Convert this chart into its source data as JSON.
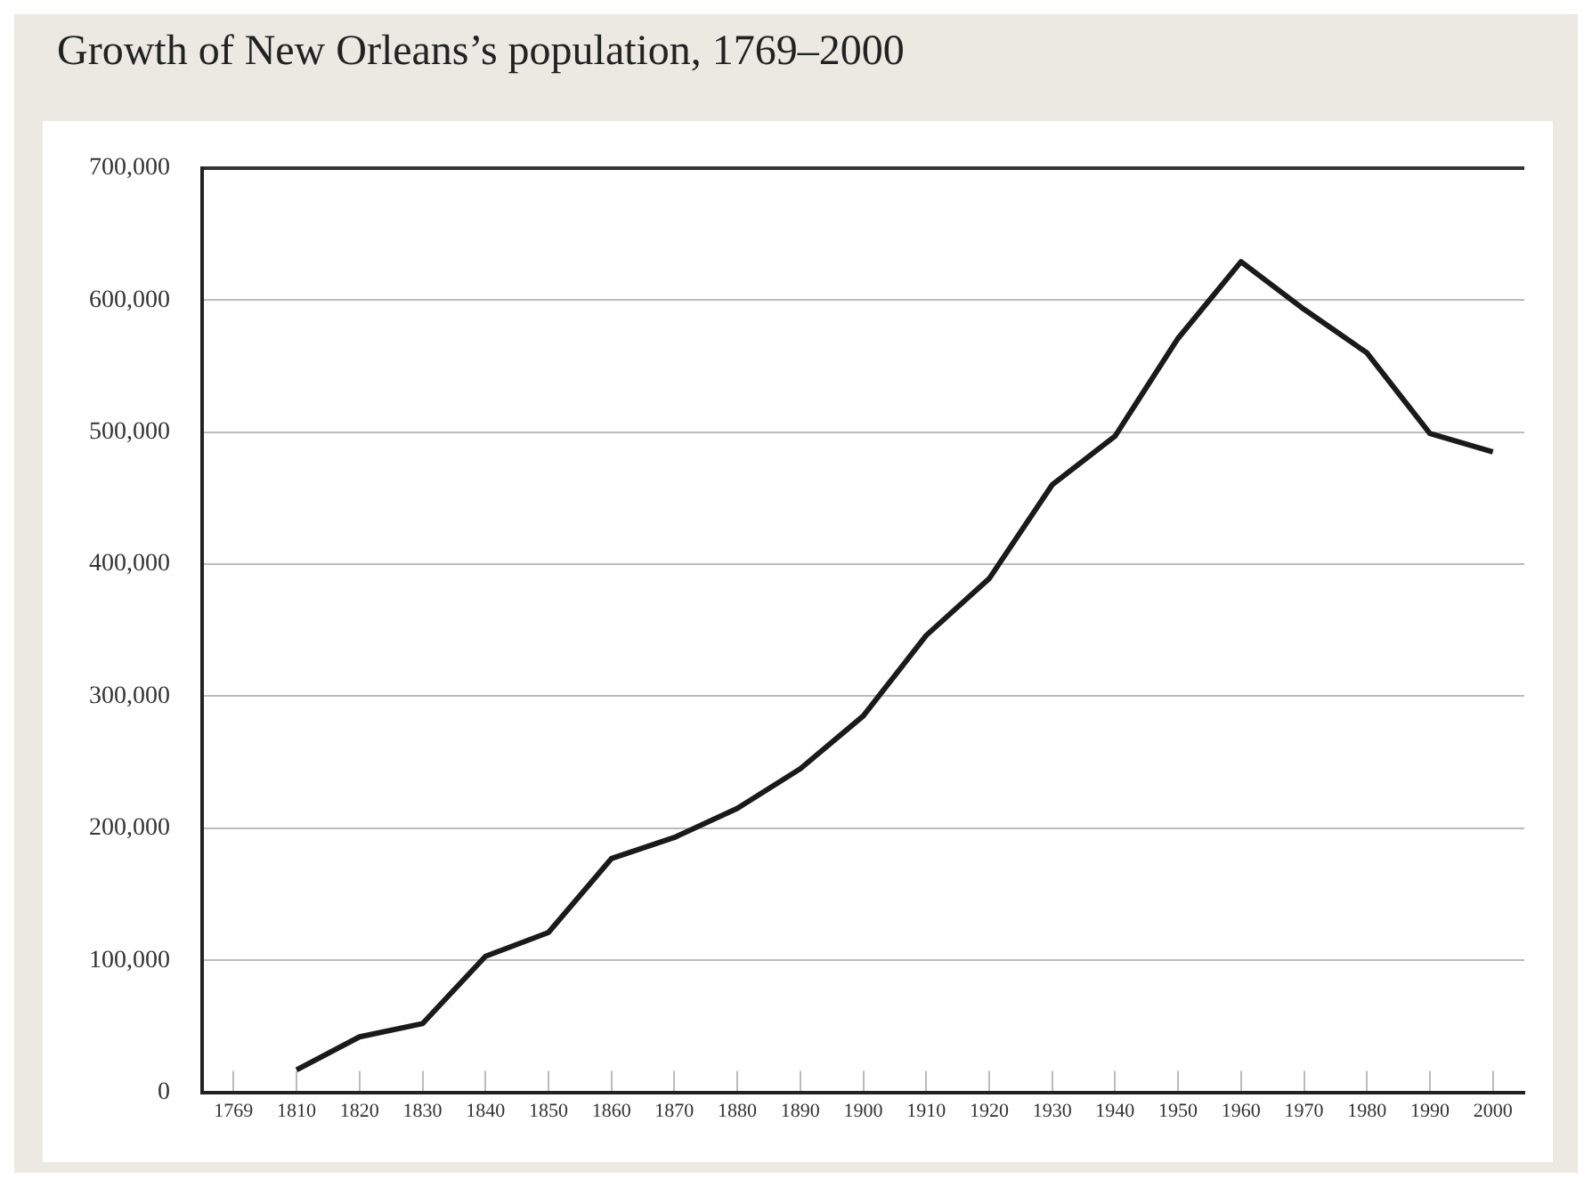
{
  "chart_data": {
    "type": "line",
    "title": "Growth of New Orleans’s population, 1769–2000",
    "categories": [
      "1769",
      "1810",
      "1820",
      "1830",
      "1840",
      "1850",
      "1860",
      "1870",
      "1880",
      "1890",
      "1900",
      "1910",
      "1920",
      "1930",
      "1940",
      "1950",
      "1960",
      "1970",
      "1980",
      "1990",
      "2000"
    ],
    "series": [
      {
        "color": "#1a1a1a",
        "values": [
          null,
          17000,
          42000,
          52000,
          103000,
          121000,
          177000,
          193000,
          215000,
          245000,
          285000,
          346000,
          389000,
          460000,
          497000,
          571000,
          629000,
          593000,
          560000,
          499000,
          485000
        ]
      }
    ],
    "ylim": [
      0,
      700000
    ],
    "yticks": [
      0,
      {
        "value": 100000,
        "label": "100,000"
      },
      {
        "value": 200000,
        "label": "200,000"
      },
      {
        "value": 300000,
        "label": "300,000"
      },
      {
        "value": 400000,
        "label": "400,000"
      },
      {
        "value": 500000,
        "label": "500,000"
      },
      {
        "value": 600000,
        "label": "600,000"
      },
      {
        "value": 700000,
        "label": "700,000"
      }
    ],
    "grid": "y",
    "legend": false,
    "marker": "none",
    "line_style": "solid"
  }
}
